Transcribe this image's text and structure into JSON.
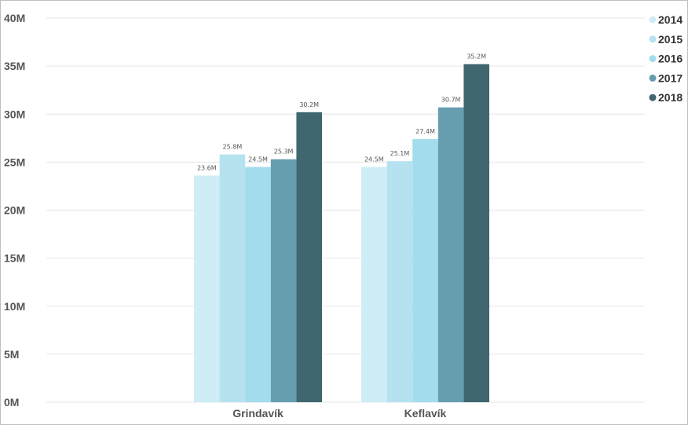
{
  "chart_data": {
    "type": "bar",
    "categories": [
      "Grindavík",
      "Keflavík"
    ],
    "series": [
      {
        "name": "2014",
        "color": "#cfedf6",
        "values": [
          23.6,
          24.5
        ],
        "labels": [
          "23.6M",
          "24.5M"
        ]
      },
      {
        "name": "2015",
        "color": "#b6e2f0",
        "values": [
          25.8,
          25.1
        ],
        "labels": [
          "25.8M",
          "25.1M"
        ]
      },
      {
        "name": "2016",
        "color": "#a3dcec",
        "values": [
          24.5,
          27.4
        ],
        "labels": [
          "24.5M",
          "27.4M"
        ]
      },
      {
        "name": "2017",
        "color": "#669eb0",
        "values": [
          25.3,
          30.7
        ],
        "labels": [
          "25.3M",
          "30.7M"
        ]
      },
      {
        "name": "2018",
        "color": "#40666f",
        "values": [
          30.2,
          35.2
        ],
        "labels": [
          "30.2M",
          "35.2M"
        ]
      }
    ],
    "yticks": [
      "0M",
      "5M",
      "10M",
      "15M",
      "20M",
      "25M",
      "30M",
      "35M",
      "40M"
    ],
    "ylim": [
      0,
      40
    ],
    "grid": true,
    "legend_position": "top-right",
    "title": "",
    "xlabel": "",
    "ylabel": ""
  }
}
